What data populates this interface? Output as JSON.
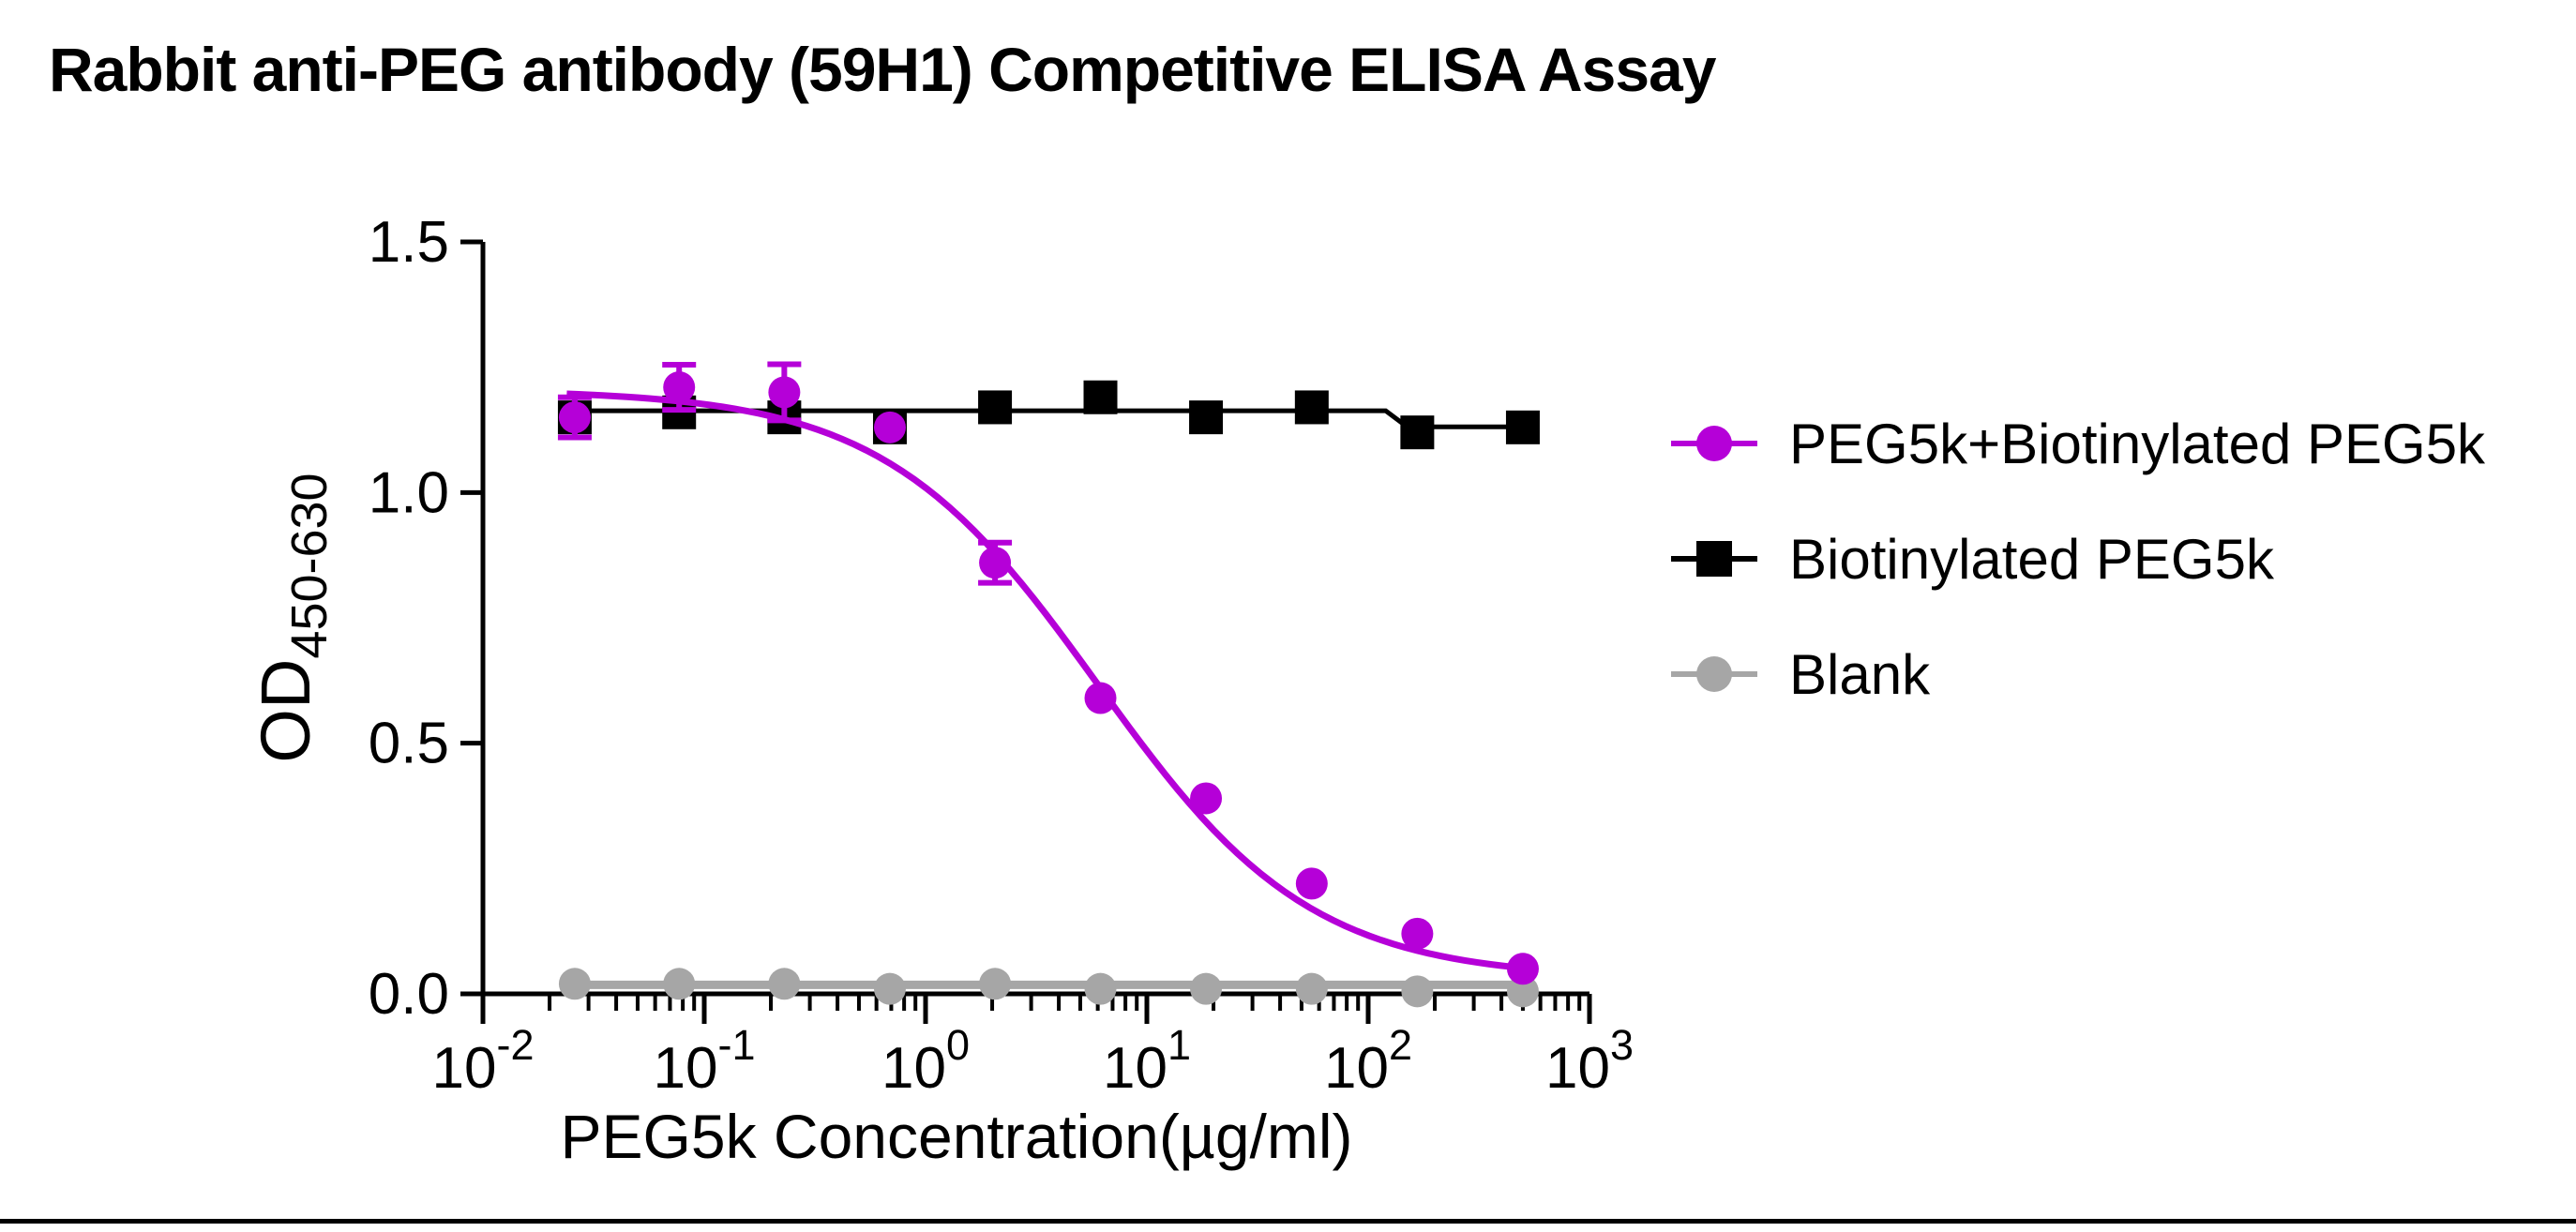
{
  "title": {
    "text": "Rabbit anti-PEG antibody (59H1) Competitive ELISA Assay"
  },
  "legend": {
    "items": [
      {
        "label": "PEG5k+Biotinylated PEG5k",
        "marker": "circle",
        "color": "#B500D8"
      },
      {
        "label": "Biotinylated PEG5k",
        "marker": "square",
        "color": "#000000"
      },
      {
        "label": "Blank",
        "marker": "circle",
        "color": "#A6A6A6"
      }
    ]
  },
  "chart_data": {
    "type": "scatter",
    "title": "Rabbit anti-PEG antibody (59H1) Competitive ELISA Assay",
    "xlabel": "PEG5k Concentration(µg/ml)",
    "ylabel_base": "OD",
    "ylabel_subscript": "450-630",
    "x_scale": "log10",
    "x_tick_exponents": [
      -2,
      -1,
      0,
      1,
      2,
      3
    ],
    "xlim": [
      0.01,
      1000
    ],
    "y_ticks": [
      "0.0",
      "0.5",
      "1.0",
      "1.5"
    ],
    "ylim": [
      0,
      1.5
    ],
    "grid": false,
    "legend_position": "right",
    "x": [
      0.026,
      0.077,
      0.23,
      0.69,
      2.06,
      6.17,
      18.5,
      55.6,
      166.7,
      500
    ],
    "series": [
      {
        "name": "PEG5k+Biotinylated PEG5k",
        "color": "#B500D8",
        "marker": "circle",
        "values": [
          1.15,
          1.21,
          1.2,
          1.13,
          0.86,
          0.59,
          0.39,
          0.22,
          0.12,
          0.05
        ],
        "errors": [
          0.04,
          0.045,
          0.056,
          0,
          0.04,
          0,
          0,
          0,
          0,
          0
        ],
        "fit": {
          "type": "4pl",
          "top": 1.205,
          "bottom": 0.03,
          "ec50": 6.0,
          "hill": 0.9
        }
      },
      {
        "name": "Biotinylated PEG5k",
        "color": "#000000",
        "marker": "square",
        "values": [
          1.15,
          1.16,
          1.15,
          1.13,
          1.17,
          1.19,
          1.15,
          1.17,
          1.12,
          1.13
        ],
        "errors": [
          0,
          0,
          0,
          0,
          0,
          0,
          0,
          0,
          0,
          0
        ],
        "fit": {
          "type": "step",
          "level1": 1.163,
          "level2": 1.131,
          "step_at": 120
        }
      },
      {
        "name": "Blank",
        "color": "#A6A6A6",
        "marker": "circle",
        "values": [
          0.02,
          0.02,
          0.02,
          0.01,
          0.02,
          0.01,
          0.01,
          0.01,
          0.005,
          0.005
        ],
        "errors": [
          0,
          0,
          0,
          0,
          0,
          0,
          0,
          0,
          0,
          0
        ],
        "fit": {
          "type": "flat",
          "level": 0.018
        }
      }
    ]
  }
}
